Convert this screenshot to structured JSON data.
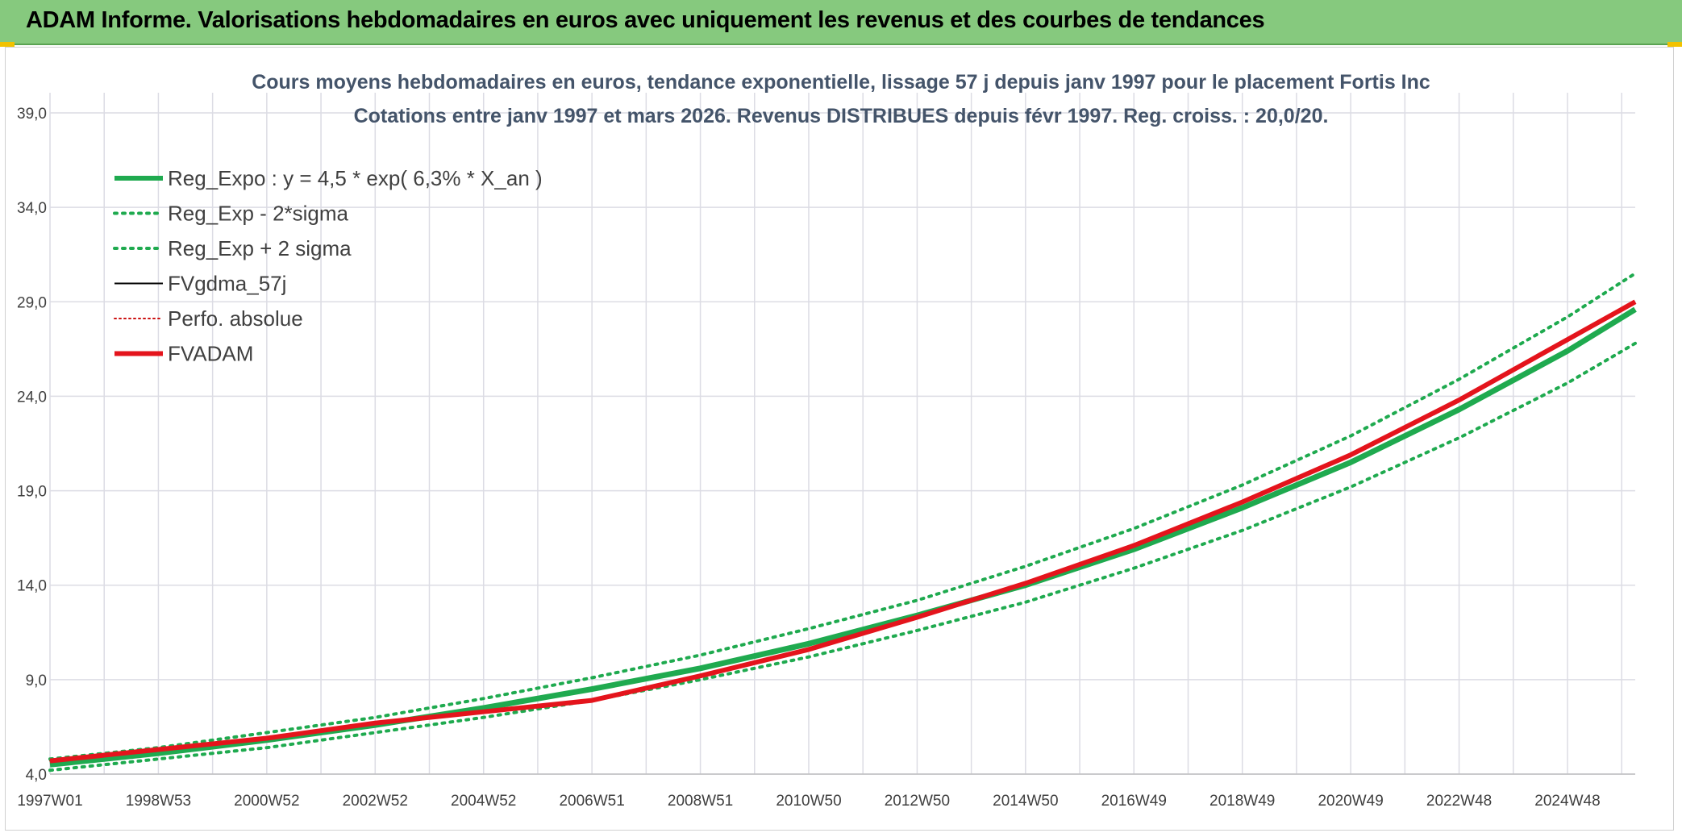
{
  "header": {
    "title": "ADAM Informe. Valorisations hebdomadaires en euros avec uniquement les revenus et des courbes de tendances"
  },
  "colors": {
    "header_bg": "#86c97e",
    "reg_green": "#1faa4f",
    "fvadam_red": "#e4141c",
    "perfo_red": "#cc1111",
    "fvgdma_black": "#000000",
    "grid": "#dcdce4"
  },
  "chart_data": {
    "type": "line",
    "title": "Cours moyens hebdomadaires en euros, tendance exponentielle, lissage 57 j depuis janv 1997 pour le placement Fortis Inc",
    "subtitle": "Cotations entre janv 1997 et mars 2026. Revenus DISTRIBUES depuis févr 1997. Reg. croiss. : 20,0/20.",
    "xlabel": "",
    "ylabel": "",
    "ylim": [
      4.0,
      39.0
    ],
    "yticks": [
      "4,0",
      "9,0",
      "14,0",
      "19,0",
      "24,0",
      "29,0",
      "34,0",
      "39,0"
    ],
    "ytick_values": [
      4,
      9,
      14,
      19,
      24,
      29,
      34,
      39
    ],
    "x_range_years": [
      1997.0,
      2026.25
    ],
    "xticks": [
      "1997W01",
      "1998W53",
      "2000W52",
      "2002W52",
      "2004W52",
      "2006W51",
      "2008W51",
      "2010W50",
      "2012W50",
      "2014W50",
      "2016W49",
      "2018W49",
      "2020W49",
      "2022W48",
      "2024W48"
    ],
    "xtick_years": [
      1997,
      1999,
      2001,
      2003,
      2005,
      2007,
      2009,
      2011,
      2013,
      2015,
      2017,
      2019,
      2021,
      2023,
      2025
    ],
    "grid": true,
    "legend_position": "top-left",
    "series": [
      {
        "name": "Reg_Expo : y = 4,5 * exp( 6,3% *  X_an )",
        "style": "solid",
        "color": "#1faa4f",
        "x": [
          1997,
          1999,
          2001,
          2003,
          2005,
          2007,
          2009,
          2011,
          2013,
          2015,
          2017,
          2019,
          2021,
          2023,
          2025,
          2026.25
        ],
        "y": [
          4.5,
          5.1,
          5.8,
          6.6,
          7.5,
          8.5,
          9.6,
          10.9,
          12.4,
          14.0,
          15.9,
          18.1,
          20.5,
          23.3,
          26.4,
          28.6
        ]
      },
      {
        "name": "Reg_Exp - 2*sigma",
        "style": "dotted",
        "color": "#1faa4f",
        "x": [
          1997,
          1999,
          2001,
          2003,
          2005,
          2007,
          2009,
          2011,
          2013,
          2015,
          2017,
          2019,
          2021,
          2023,
          2025,
          2026.25
        ],
        "y": [
          4.2,
          4.8,
          5.4,
          6.2,
          7.0,
          7.9,
          9.0,
          10.2,
          11.6,
          13.1,
          14.9,
          16.9,
          19.2,
          21.8,
          24.7,
          26.8
        ]
      },
      {
        "name": "Reg_Exp + 2 sigma",
        "style": "dotted",
        "color": "#1faa4f",
        "x": [
          1997,
          1999,
          2001,
          2003,
          2005,
          2007,
          2009,
          2011,
          2013,
          2015,
          2017,
          2019,
          2021,
          2023,
          2025,
          2026.25
        ],
        "y": [
          4.8,
          5.4,
          6.2,
          7.0,
          8.0,
          9.1,
          10.3,
          11.7,
          13.2,
          15.0,
          17.0,
          19.3,
          21.9,
          24.9,
          28.2,
          30.5
        ]
      },
      {
        "name": "FVgdma_57j",
        "style": "solid",
        "color": "#000000",
        "x": [
          1997,
          1999,
          2001,
          2003,
          2005,
          2007,
          2009,
          2011,
          2013,
          2015,
          2017,
          2019,
          2021,
          2023,
          2025,
          2026.25
        ],
        "y": [
          4.7,
          5.3,
          5.9,
          6.7,
          7.3,
          7.9,
          9.2,
          10.6,
          12.3,
          14.1,
          16.1,
          18.4,
          20.9,
          23.8,
          27.0,
          29.0
        ]
      },
      {
        "name": "Perfo. absolue",
        "style": "dotted",
        "color": "#cc1111",
        "x": [
          1997,
          1999,
          2001,
          2003,
          2005,
          2007,
          2009,
          2011,
          2013,
          2015,
          2017,
          2019,
          2021,
          2023,
          2025,
          2026.25
        ],
        "y": [
          4.7,
          5.3,
          5.9,
          6.7,
          7.3,
          7.9,
          9.2,
          10.6,
          12.3,
          14.1,
          16.1,
          18.4,
          20.9,
          23.8,
          27.0,
          29.0
        ]
      },
      {
        "name": "FVADAM",
        "style": "solid",
        "color": "#e4141c",
        "x": [
          1997,
          1999,
          2001,
          2003,
          2005,
          2007,
          2009,
          2011,
          2013,
          2015,
          2017,
          2019,
          2021,
          2023,
          2025,
          2026.25
        ],
        "y": [
          4.7,
          5.3,
          5.9,
          6.7,
          7.3,
          7.9,
          9.2,
          10.6,
          12.3,
          14.1,
          16.1,
          18.4,
          20.9,
          23.8,
          27.0,
          29.0
        ]
      }
    ]
  }
}
